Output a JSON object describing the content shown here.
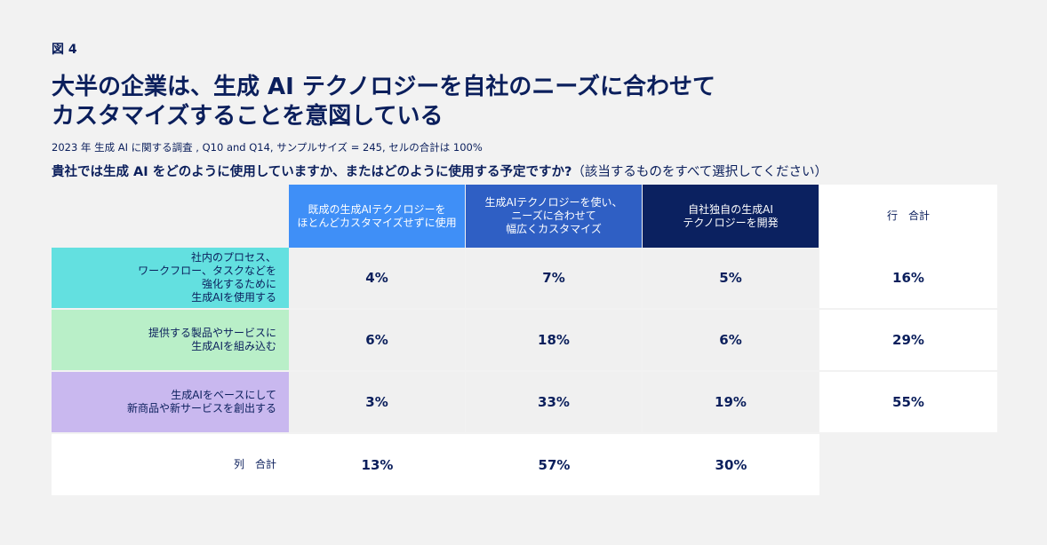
{
  "figure_label": "図 4",
  "title": "大半の企業は、生成 AI テクノロジーを自社のニーズに合わせてカスタマイズすることを意図している",
  "subtitle": "2023 年 生成 AI に関する調査 , Q10 and Q14, サンプルサイズ = 245, セルの合計は 100%",
  "question": "貴社では生成 AI をどのように使用していますか、またはどのように使用する予定ですか?",
  "question_note": "（該当するものをすべて選択してください）",
  "colors": {
    "col_header": [
      "#3f8ff7",
      "#2f5fc4",
      "#0b2160"
    ],
    "row_label": [
      "#63e0e0",
      "#b9efc8",
      "#c9b8ef"
    ],
    "text": "#0b1f5c"
  },
  "chart_data": {
    "type": "table",
    "columns": [
      "既成の生成AIテクノロジーを\nほとんどカスタマイズせずに使用",
      "生成AIテクノロジーを使い、\nニーズに合わせて\n幅広くカスタマイズ",
      "自社独自の生成AI\nテクノロジーを開発"
    ],
    "row_total_header": "行　合計",
    "rows": [
      {
        "label": "社内のプロセス、\nワークフロー、タスクなどを\n強化するために\n生成AIを使用する",
        "values": [
          "4%",
          "7%",
          "5%"
        ],
        "total": "16%"
      },
      {
        "label": "提供する製品やサービスに\n生成AIを組み込む",
        "values": [
          "6%",
          "18%",
          "6%"
        ],
        "total": "29%"
      },
      {
        "label": "生成AIをベースにして\n新商品や新サービスを創出する",
        "values": [
          "3%",
          "33%",
          "19%"
        ],
        "total": "55%"
      }
    ],
    "column_total_label": "列　合計",
    "column_totals": [
      "13%",
      "57%",
      "30%"
    ]
  }
}
